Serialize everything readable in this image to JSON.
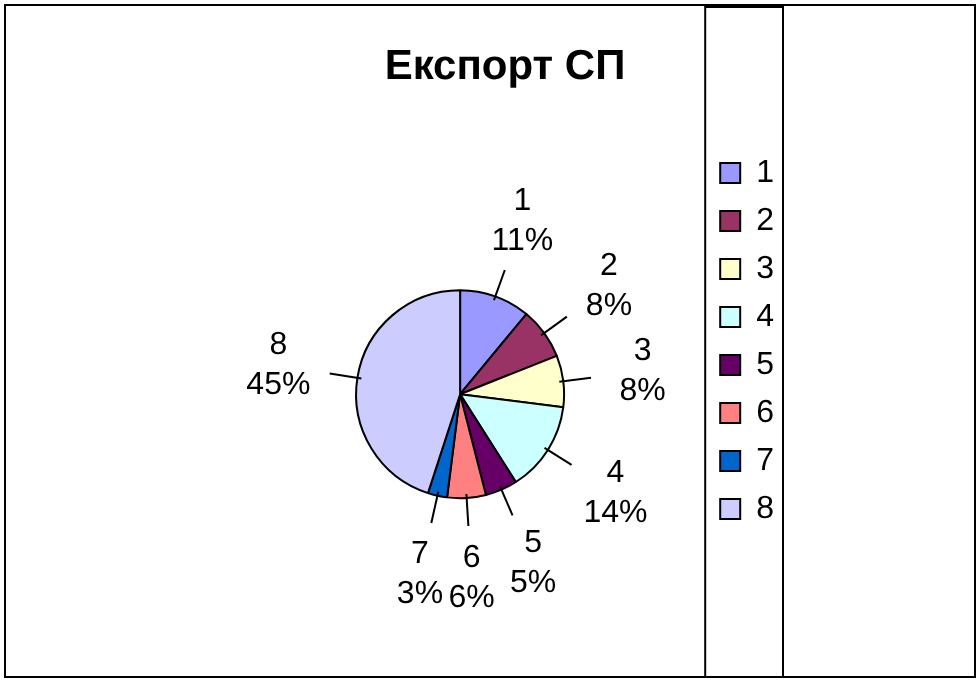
{
  "chart_data": {
    "type": "pie",
    "title": "Експорт СП",
    "categories": [
      "1",
      "2",
      "3",
      "4",
      "5",
      "6",
      "7",
      "8"
    ],
    "values": [
      11,
      8,
      8,
      14,
      5,
      6,
      3,
      45
    ],
    "value_labels": [
      "11%",
      "8%",
      "8%",
      "14%",
      "5%",
      "6%",
      "3%",
      "45%"
    ],
    "colors": [
      "#9999ff",
      "#993366",
      "#ffffcc",
      "#ccffff",
      "#660066",
      "#ff8080",
      "#0066cc",
      "#ccccff"
    ],
    "legend": "right"
  }
}
